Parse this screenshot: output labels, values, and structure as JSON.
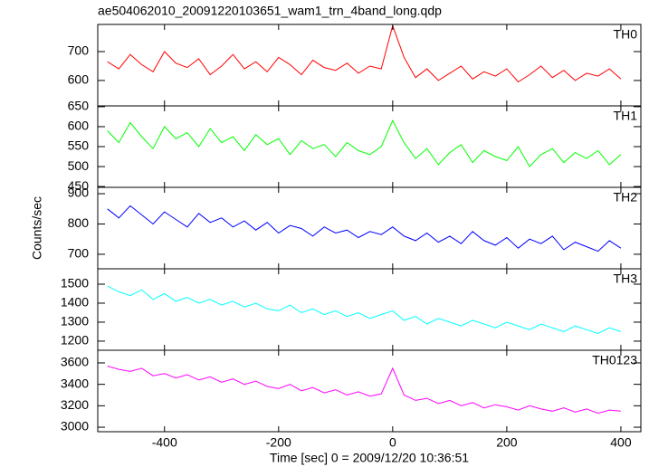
{
  "chart_data": {
    "type": "line",
    "title": "ae504062010_20091220103651_wam1_trn_4band_long.qdp",
    "x_label": "Time [sec] 0 = 2009/12/20 10:36:51",
    "y_label": "Counts/sec",
    "x": [
      -500,
      -480,
      -460,
      -440,
      -420,
      -400,
      -380,
      -360,
      -340,
      -320,
      -300,
      -280,
      -260,
      -240,
      -220,
      -200,
      -180,
      -160,
      -140,
      -120,
      -100,
      -80,
      -60,
      -40,
      -20,
      0,
      20,
      40,
      60,
      80,
      100,
      120,
      140,
      160,
      180,
      200,
      220,
      240,
      260,
      280,
      300,
      320,
      340,
      360,
      380,
      400
    ],
    "xlim": [
      -517,
      435
    ],
    "xticks": [
      -400,
      -200,
      0,
      200,
      400
    ],
    "series": [
      {
        "name": "TH0",
        "color": "#ff0000",
        "ylim": [
          512,
          794
        ],
        "yticks": [
          600,
          700
        ],
        "values": [
          665,
          640,
          690,
          655,
          630,
          700,
          660,
          645,
          675,
          620,
          650,
          690,
          640,
          665,
          630,
          680,
          655,
          620,
          670,
          645,
          635,
          660,
          625,
          650,
          640,
          790,
          680,
          610,
          640,
          600,
          625,
          650,
          605,
          630,
          615,
          640,
          595,
          620,
          650,
          610,
          635,
          600,
          625,
          615,
          640,
          605
        ]
      },
      {
        "name": "TH1",
        "color": "#00ff00",
        "ylim": [
          448,
          652
        ],
        "yticks": [
          450,
          500,
          550,
          600,
          650
        ],
        "values": [
          590,
          560,
          610,
          575,
          545,
          600,
          570,
          585,
          550,
          595,
          560,
          575,
          540,
          580,
          555,
          570,
          530,
          565,
          545,
          555,
          525,
          560,
          540,
          530,
          550,
          615,
          560,
          520,
          545,
          505,
          535,
          555,
          510,
          540,
          525,
          515,
          550,
          500,
          530,
          545,
          510,
          535,
          520,
          540,
          505,
          530
        ]
      },
      {
        "name": "TH2",
        "color": "#0000ff",
        "ylim": [
          652,
          921
        ],
        "yticks": [
          700,
          800,
          900
        ],
        "values": [
          850,
          820,
          860,
          830,
          800,
          840,
          815,
          790,
          835,
          805,
          820,
          790,
          810,
          780,
          805,
          770,
          795,
          785,
          760,
          790,
          770,
          780,
          755,
          775,
          765,
          790,
          760,
          745,
          770,
          740,
          760,
          735,
          775,
          745,
          730,
          755,
          720,
          750,
          735,
          760,
          715,
          740,
          725,
          710,
          745,
          720
        ]
      },
      {
        "name": "TH3",
        "color": "#00ffff",
        "ylim": [
          1152,
          1581
        ],
        "yticks": [
          1200,
          1300,
          1400,
          1500
        ],
        "values": [
          1490,
          1460,
          1440,
          1470,
          1420,
          1450,
          1410,
          1430,
          1400,
          1420,
          1390,
          1410,
          1380,
          1400,
          1370,
          1360,
          1390,
          1350,
          1370,
          1340,
          1360,
          1330,
          1350,
          1320,
          1340,
          1360,
          1310,
          1330,
          1290,
          1320,
          1300,
          1280,
          1310,
          1290,
          1270,
          1300,
          1280,
          1260,
          1290,
          1270,
          1250,
          1280,
          1260,
          1240,
          1270,
          1250
        ]
      },
      {
        "name": "TH0123",
        "color": "#ff00ff",
        "ylim": [
          2958,
          3718
        ],
        "yticks": [
          3000,
          3200,
          3400,
          3600
        ],
        "values": [
          3570,
          3540,
          3520,
          3550,
          3480,
          3500,
          3460,
          3490,
          3440,
          3470,
          3420,
          3450,
          3400,
          3430,
          3380,
          3360,
          3400,
          3340,
          3370,
          3320,
          3350,
          3300,
          3330,
          3290,
          3310,
          3550,
          3300,
          3250,
          3270,
          3220,
          3250,
          3200,
          3230,
          3180,
          3210,
          3190,
          3160,
          3200,
          3170,
          3150,
          3180,
          3140,
          3170,
          3130,
          3160,
          3150
        ]
      }
    ]
  }
}
